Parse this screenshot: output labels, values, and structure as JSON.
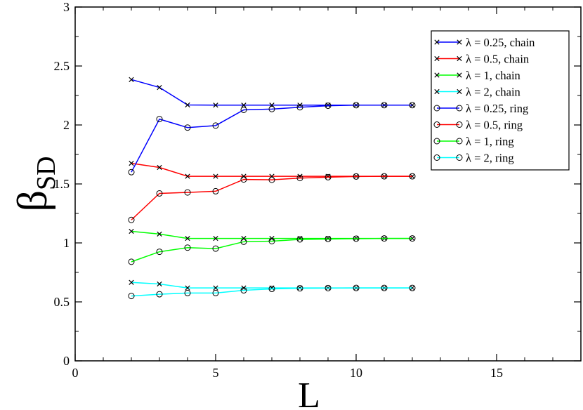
{
  "chart_data": {
    "type": "line",
    "xlabel": "L",
    "ylabel_main": "β",
    "ylabel_sub": "SD",
    "xlim": [
      0,
      18
    ],
    "ylim": [
      0,
      3
    ],
    "x_ticks": [
      0,
      5,
      10,
      15
    ],
    "y_ticks": [
      0,
      0.5,
      1,
      1.5,
      2,
      2.5,
      3
    ],
    "x_tick_labels": [
      "0",
      "5",
      "10",
      "15"
    ],
    "y_tick_labels": [
      "0",
      "0.5",
      "1",
      "1.5",
      "2",
      "2.5",
      "3"
    ],
    "legend_position": "top-right",
    "x": [
      2,
      3,
      4,
      5,
      6,
      7,
      8,
      9,
      10,
      11,
      12
    ],
    "series": [
      {
        "name": "λ = 0.25, chain",
        "color": "#0000ff",
        "marker": "x",
        "values": [
          2.385,
          2.318,
          2.17,
          2.168,
          2.168,
          2.168,
          2.168,
          2.168,
          2.168,
          2.168,
          2.168
        ]
      },
      {
        "name": "λ = 0.5, chain",
        "color": "#ff0000",
        "marker": "x",
        "values": [
          1.675,
          1.64,
          1.565,
          1.565,
          1.565,
          1.565,
          1.565,
          1.565,
          1.565,
          1.565,
          1.565
        ]
      },
      {
        "name": "λ = 1, chain",
        "color": "#00ff00",
        "marker": "x",
        "values": [
          1.098,
          1.075,
          1.038,
          1.038,
          1.038,
          1.038,
          1.038,
          1.038,
          1.038,
          1.038,
          1.038
        ]
      },
      {
        "name": "λ = 2, chain",
        "color": "#00ffff",
        "marker": "x",
        "values": [
          0.665,
          0.652,
          0.618,
          0.618,
          0.618,
          0.618,
          0.618,
          0.618,
          0.618,
          0.618,
          0.618
        ]
      },
      {
        "name": "λ = 0.25, ring",
        "color": "#0000ff",
        "marker": "o",
        "values": [
          1.6,
          2.05,
          1.978,
          1.995,
          2.128,
          2.135,
          2.15,
          2.163,
          2.168,
          2.168,
          2.168
        ]
      },
      {
        "name": "λ = 0.5, ring",
        "color": "#ff0000",
        "marker": "o",
        "values": [
          1.195,
          1.42,
          1.428,
          1.438,
          1.538,
          1.535,
          1.55,
          1.557,
          1.563,
          1.565,
          1.565
        ]
      },
      {
        "name": "λ = 1, ring",
        "color": "#00ff00",
        "marker": "o",
        "values": [
          0.84,
          0.925,
          0.96,
          0.952,
          1.01,
          1.015,
          1.03,
          1.033,
          1.036,
          1.038,
          1.038
        ]
      },
      {
        "name": "λ = 2, ring",
        "color": "#00ffff",
        "marker": "o",
        "values": [
          0.55,
          0.565,
          0.575,
          0.575,
          0.598,
          0.61,
          0.615,
          0.617,
          0.618,
          0.618,
          0.618
        ]
      }
    ]
  }
}
